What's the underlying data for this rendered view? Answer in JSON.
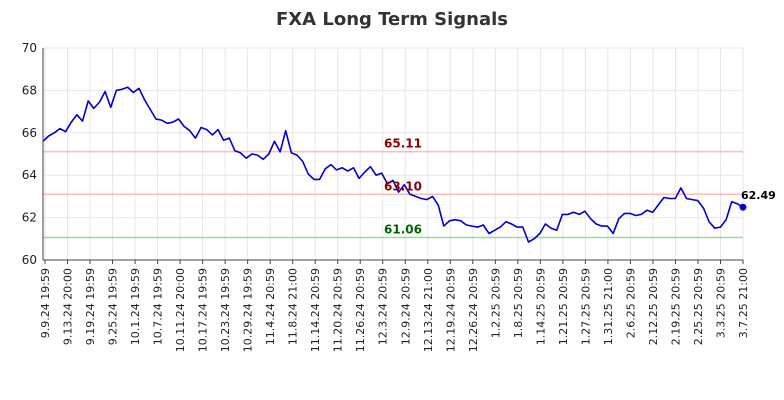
{
  "chart_data": {
    "type": "line",
    "title": "FXA Long Term Signals",
    "xlabel": "",
    "ylabel": "",
    "ylim": [
      60,
      70
    ],
    "yticks": [
      60,
      62,
      64,
      66,
      68,
      70
    ],
    "grid": true,
    "xtick_labels": [
      "9.9.24 19:59",
      "9.13.24 20:00",
      "9.19.24 19:59",
      "9.25.24 19:59",
      "10.1.24 19:59",
      "10.7.24 19:59",
      "10.11.24 20:00",
      "10.17.24 19:59",
      "10.23.24 19:59",
      "10.29.24 19:59",
      "11.4.24 20:59",
      "11.8.24 21:00",
      "11.14.24 20:59",
      "11.20.24 20:59",
      "11.26.24 20:59",
      "12.3.24 20:59",
      "12.9.24 20:59",
      "12.13.24 21:00",
      "12.19.24 20:59",
      "12.26.24 20:59",
      "1.2.25 20:59",
      "1.8.25 20:59",
      "1.14.25 20:59",
      "1.21.25 20:59",
      "1.27.25 20:59",
      "1.31.25 21:00",
      "2.6.25 20:59",
      "2.12.25 20:59",
      "2.19.25 20:59",
      "2.25.25 20:59",
      "3.3.25 20:59",
      "3.7.25 21:00"
    ],
    "series": [
      {
        "color": "#0000cc",
        "values": [
          65.6,
          65.85,
          66.0,
          66.2,
          66.05,
          66.5,
          66.85,
          66.55,
          67.5,
          67.15,
          67.45,
          67.95,
          67.2,
          68.0,
          68.05,
          68.15,
          67.9,
          68.1,
          67.55,
          67.1,
          66.65,
          66.6,
          66.45,
          66.5,
          66.65,
          66.3,
          66.1,
          65.75,
          66.25,
          66.15,
          65.9,
          66.15,
          65.65,
          65.75,
          65.15,
          65.05,
          64.8,
          65.0,
          64.95,
          64.75,
          65.0,
          65.6,
          65.1,
          66.1,
          65.05,
          64.95,
          64.65,
          64.05,
          63.8,
          63.8,
          64.3,
          64.5,
          64.25,
          64.35,
          64.2,
          64.35,
          63.85,
          64.15,
          64.4,
          64.0,
          64.1,
          63.6,
          63.75,
          63.2,
          63.55,
          63.1,
          63.0,
          62.9,
          62.85,
          63.0,
          62.6,
          61.6,
          61.85,
          61.9,
          61.85,
          61.65,
          61.6,
          61.55,
          61.65,
          61.25,
          61.4,
          61.55,
          61.8,
          61.7,
          61.55,
          61.55,
          60.85,
          61.0,
          61.25,
          61.7,
          61.5,
          61.4,
          62.15,
          62.15,
          62.25,
          62.15,
          62.3,
          61.95,
          61.7,
          61.6,
          61.6,
          61.25,
          61.95,
          62.2,
          62.2,
          62.1,
          62.15,
          62.35,
          62.25,
          62.6,
          62.95,
          62.9,
          62.9,
          63.4,
          62.9,
          62.85,
          62.8,
          62.45,
          61.8,
          61.5,
          61.55,
          61.9,
          62.75,
          62.65,
          62.49
        ]
      }
    ],
    "hlines": [
      {
        "value": 65.11,
        "label": "65.11",
        "line_color": "#ffbbbb",
        "label_color": "#880000"
      },
      {
        "value": 63.1,
        "label": "63.10",
        "line_color": "#ffbbbb",
        "label_color": "#880000"
      },
      {
        "value": 61.06,
        "label": "61.06",
        "line_color": "#99dd99",
        "label_color": "#006600"
      }
    ],
    "last_value": {
      "value": 62.49,
      "label": "62.49",
      "color": "#0000cc"
    }
  }
}
